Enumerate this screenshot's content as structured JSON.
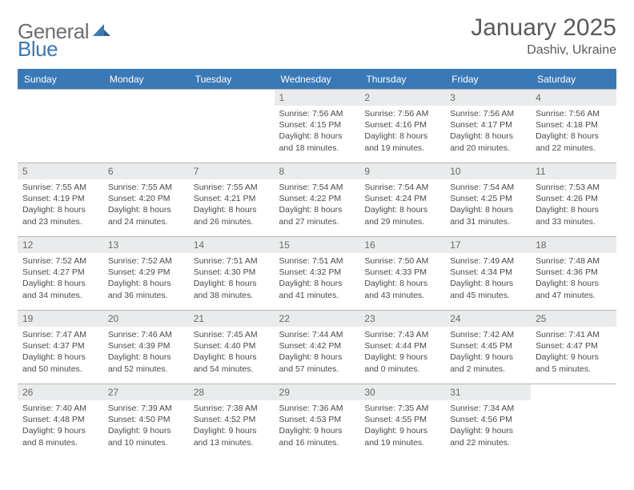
{
  "brand": {
    "part1": "General",
    "part2": "Blue"
  },
  "title": "January 2025",
  "location": "Dashiv, Ukraine",
  "colors": {
    "header_bg": "#3a78b6",
    "header_text": "#ffffff",
    "daynum_bg": "#e9ebec",
    "daynum_text": "#6a6a6a",
    "body_text": "#4a4a4a",
    "rule": "#b5b5b5",
    "logo_gray": "#6e6e6e",
    "logo_blue": "#3a78b6"
  },
  "weekdays": [
    "Sunday",
    "Monday",
    "Tuesday",
    "Wednesday",
    "Thursday",
    "Friday",
    "Saturday"
  ],
  "weeks": [
    [
      null,
      null,
      null,
      {
        "n": "1",
        "sr": "7:56 AM",
        "ss": "4:15 PM",
        "dl": "8 hours and 18 minutes."
      },
      {
        "n": "2",
        "sr": "7:56 AM",
        "ss": "4:16 PM",
        "dl": "8 hours and 19 minutes."
      },
      {
        "n": "3",
        "sr": "7:56 AM",
        "ss": "4:17 PM",
        "dl": "8 hours and 20 minutes."
      },
      {
        "n": "4",
        "sr": "7:56 AM",
        "ss": "4:18 PM",
        "dl": "8 hours and 22 minutes."
      }
    ],
    [
      {
        "n": "5",
        "sr": "7:55 AM",
        "ss": "4:19 PM",
        "dl": "8 hours and 23 minutes."
      },
      {
        "n": "6",
        "sr": "7:55 AM",
        "ss": "4:20 PM",
        "dl": "8 hours and 24 minutes."
      },
      {
        "n": "7",
        "sr": "7:55 AM",
        "ss": "4:21 PM",
        "dl": "8 hours and 26 minutes."
      },
      {
        "n": "8",
        "sr": "7:54 AM",
        "ss": "4:22 PM",
        "dl": "8 hours and 27 minutes."
      },
      {
        "n": "9",
        "sr": "7:54 AM",
        "ss": "4:24 PM",
        "dl": "8 hours and 29 minutes."
      },
      {
        "n": "10",
        "sr": "7:54 AM",
        "ss": "4:25 PM",
        "dl": "8 hours and 31 minutes."
      },
      {
        "n": "11",
        "sr": "7:53 AM",
        "ss": "4:26 PM",
        "dl": "8 hours and 33 minutes."
      }
    ],
    [
      {
        "n": "12",
        "sr": "7:52 AM",
        "ss": "4:27 PM",
        "dl": "8 hours and 34 minutes."
      },
      {
        "n": "13",
        "sr": "7:52 AM",
        "ss": "4:29 PM",
        "dl": "8 hours and 36 minutes."
      },
      {
        "n": "14",
        "sr": "7:51 AM",
        "ss": "4:30 PM",
        "dl": "8 hours and 38 minutes."
      },
      {
        "n": "15",
        "sr": "7:51 AM",
        "ss": "4:32 PM",
        "dl": "8 hours and 41 minutes."
      },
      {
        "n": "16",
        "sr": "7:50 AM",
        "ss": "4:33 PM",
        "dl": "8 hours and 43 minutes."
      },
      {
        "n": "17",
        "sr": "7:49 AM",
        "ss": "4:34 PM",
        "dl": "8 hours and 45 minutes."
      },
      {
        "n": "18",
        "sr": "7:48 AM",
        "ss": "4:36 PM",
        "dl": "8 hours and 47 minutes."
      }
    ],
    [
      {
        "n": "19",
        "sr": "7:47 AM",
        "ss": "4:37 PM",
        "dl": "8 hours and 50 minutes."
      },
      {
        "n": "20",
        "sr": "7:46 AM",
        "ss": "4:39 PM",
        "dl": "8 hours and 52 minutes."
      },
      {
        "n": "21",
        "sr": "7:45 AM",
        "ss": "4:40 PM",
        "dl": "8 hours and 54 minutes."
      },
      {
        "n": "22",
        "sr": "7:44 AM",
        "ss": "4:42 PM",
        "dl": "8 hours and 57 minutes."
      },
      {
        "n": "23",
        "sr": "7:43 AM",
        "ss": "4:44 PM",
        "dl": "9 hours and 0 minutes."
      },
      {
        "n": "24",
        "sr": "7:42 AM",
        "ss": "4:45 PM",
        "dl": "9 hours and 2 minutes."
      },
      {
        "n": "25",
        "sr": "7:41 AM",
        "ss": "4:47 PM",
        "dl": "9 hours and 5 minutes."
      }
    ],
    [
      {
        "n": "26",
        "sr": "7:40 AM",
        "ss": "4:48 PM",
        "dl": "9 hours and 8 minutes."
      },
      {
        "n": "27",
        "sr": "7:39 AM",
        "ss": "4:50 PM",
        "dl": "9 hours and 10 minutes."
      },
      {
        "n": "28",
        "sr": "7:38 AM",
        "ss": "4:52 PM",
        "dl": "9 hours and 13 minutes."
      },
      {
        "n": "29",
        "sr": "7:36 AM",
        "ss": "4:53 PM",
        "dl": "9 hours and 16 minutes."
      },
      {
        "n": "30",
        "sr": "7:35 AM",
        "ss": "4:55 PM",
        "dl": "9 hours and 19 minutes."
      },
      {
        "n": "31",
        "sr": "7:34 AM",
        "ss": "4:56 PM",
        "dl": "9 hours and 22 minutes."
      },
      null
    ]
  ],
  "labels": {
    "sunrise": "Sunrise:",
    "sunset": "Sunset:",
    "daylight": "Daylight:"
  }
}
